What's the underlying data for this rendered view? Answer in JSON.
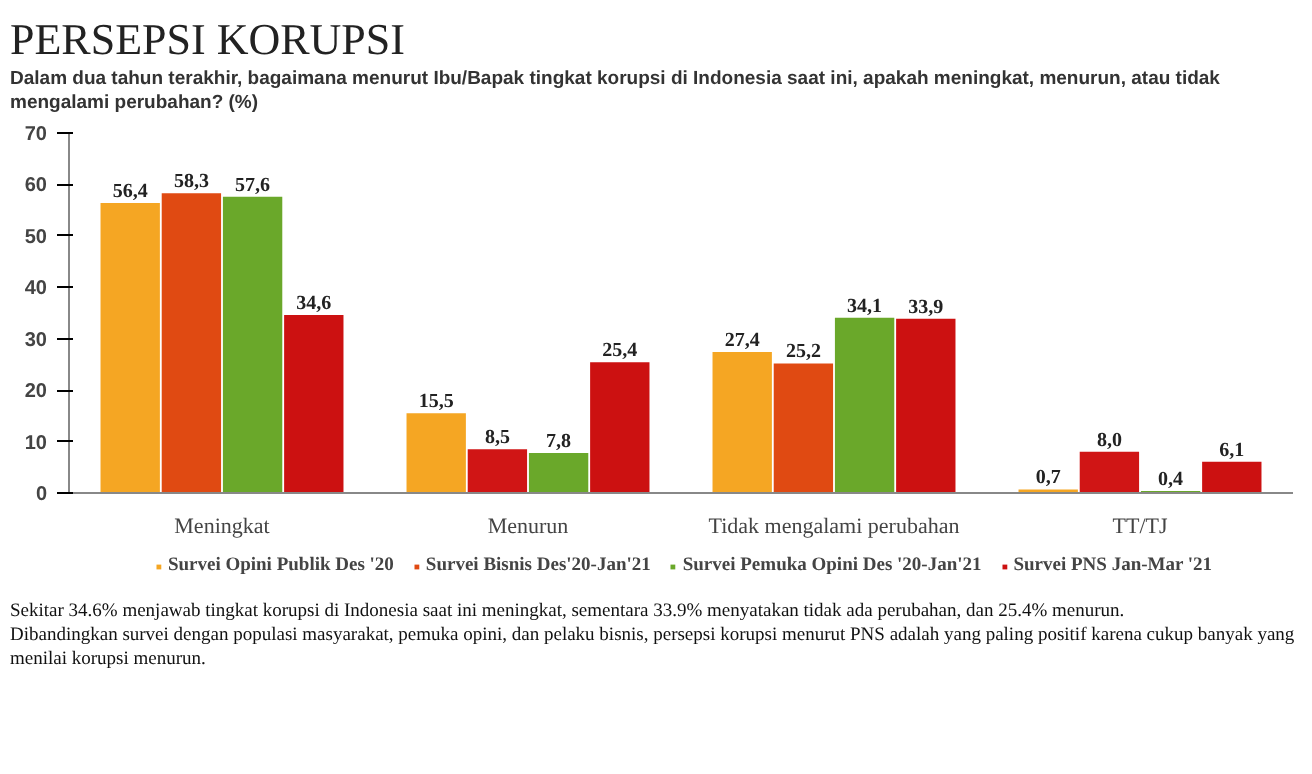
{
  "chart_data": {
    "type": "bar",
    "title": "PERSEPSI KORUPSI",
    "subtitle": "Dalam dua tahun terakhir, bagaimana menurut Ibu/Bapak tingkat korupsi di Indonesia saat ini, apakah meningkat, menurun, atau tidak mengalami perubahan? (%)",
    "categories": [
      "Meningkat",
      "Menurun",
      "Tidak mengalami perubahan",
      "TT/TJ"
    ],
    "series": [
      {
        "name": "Survei Opini Publik Des '20",
        "color": "#f5a623",
        "values": [
          56.4,
          15.5,
          27.4,
          0.7
        ],
        "value_labels": [
          "56,4",
          "15,5",
          "27,4",
          "0,7"
        ]
      },
      {
        "name": "Survei Bisnis Des'20-Jan'21",
        "color": "#e04a12",
        "colors": [
          null,
          "#d01515",
          null,
          "#d01515"
        ],
        "values": [
          58.3,
          8.5,
          25.2,
          8.0
        ],
        "value_labels": [
          "58,3",
          "8,5",
          "25,2",
          "8,0"
        ]
      },
      {
        "name": "Survei Pemuka Opini Des '20-Jan'21",
        "color": "#6aa82a",
        "values": [
          57.6,
          7.8,
          34.1,
          0.4
        ],
        "value_labels": [
          "57,6",
          "7,8",
          "34,1",
          "0,4"
        ]
      },
      {
        "name": "Survei PNS Jan-Mar '21",
        "color": "#cc1111",
        "values": [
          34.6,
          25.4,
          33.9,
          6.1
        ],
        "value_labels": [
          "34,6",
          "25,4",
          "33,9",
          "6,1"
        ]
      }
    ],
    "ylim": [
      0,
      70
    ],
    "yticks": [
      0,
      10,
      20,
      30,
      40,
      50,
      60,
      70
    ],
    "grid": false,
    "legend": "bottom",
    "annotations": [
      "Sekitar 34.6% menjawab tingkat korupsi di Indonesia saat ini meningkat, sementara 33.9% menyatakan tidak ada perubahan, dan 25.4% menurun.",
      "Dibandingkan survei dengan populasi masyarakat, pemuka opini, dan pelaku bisnis, persepsi korupsi menurut PNS adalah yang paling positif karena cukup banyak yang menilai korupsi menurun."
    ]
  }
}
